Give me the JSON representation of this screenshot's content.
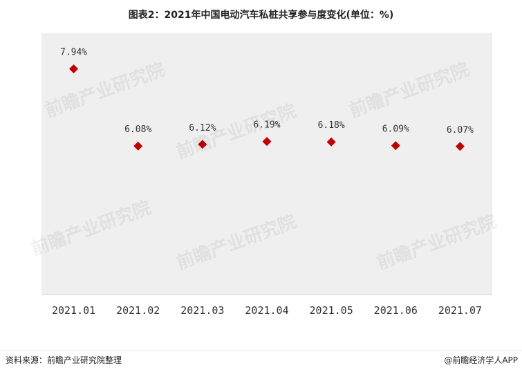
{
  "chart_data": {
    "type": "scatter",
    "title": "图表2：2021年中国电动汽车私桩共享参与度变化(单位：%)",
    "categories": [
      "2021.01",
      "2021.02",
      "2021.03",
      "2021.04",
      "2021.05",
      "2021.06",
      "2021.07"
    ],
    "values": [
      7.94,
      6.08,
      6.12,
      6.19,
      6.18,
      6.09,
      6.07
    ],
    "value_labels": [
      "7.94%",
      "6.08%",
      "6.12%",
      "6.19%",
      "6.18%",
      "6.09%",
      "6.07%"
    ],
    "ylim": [
      2.5,
      8.8
    ],
    "xlabel": "",
    "ylabel": "",
    "grid": false,
    "marker": "diamond",
    "marker_color": "#c00000",
    "plot_background": "#efefef"
  },
  "footer": {
    "source": "资料来源：前瞻产业研究院整理",
    "brand": "@前瞻经济学人APP"
  },
  "watermark": {
    "text": "前瞻产业研究院"
  }
}
